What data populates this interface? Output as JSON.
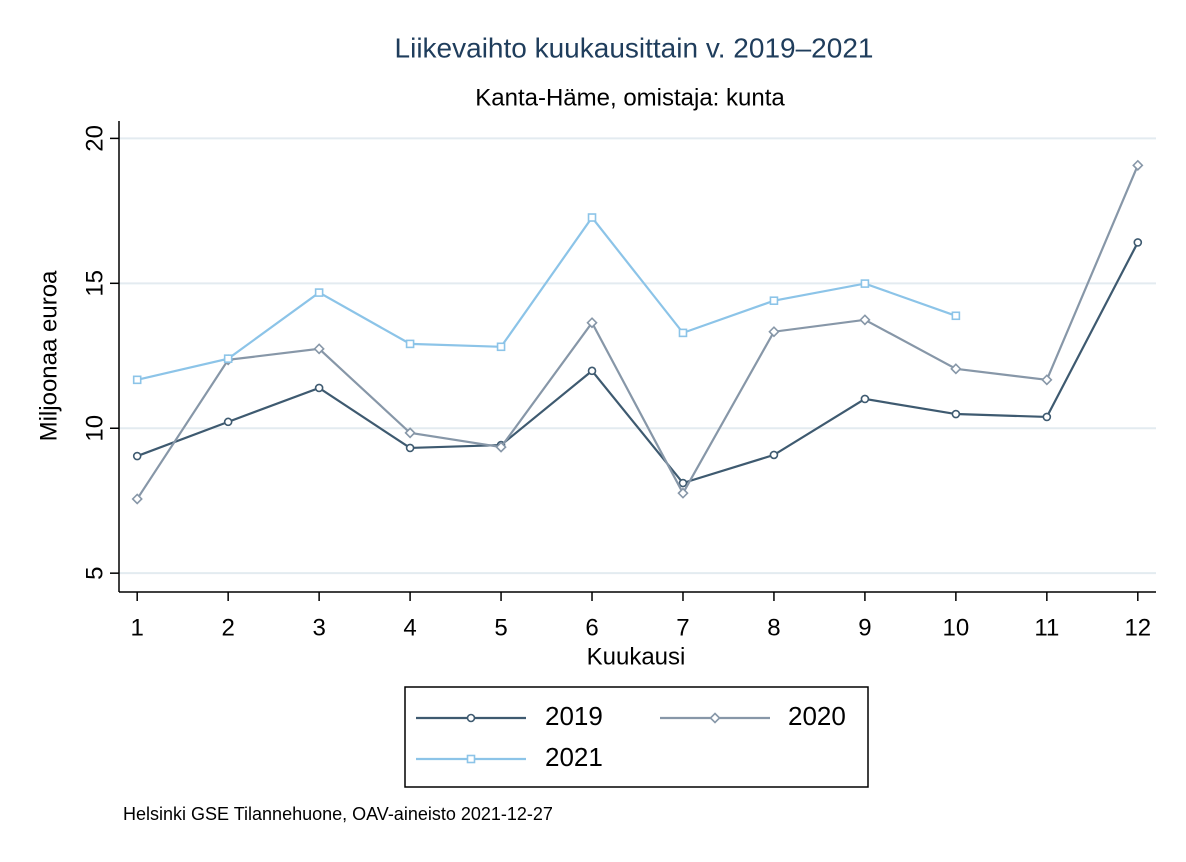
{
  "chart_data": {
    "type": "line",
    "title": "Liikevaihto kuukausittain v. 2019–2021",
    "subtitle": "Kanta-Häme, omistaja: kunta",
    "x_label": "Kuukausi",
    "y_label": "Miljoonaa euroa",
    "caption": "Helsinki GSE Tilannehuone, OAV-aineisto 2021-12-27",
    "x": [
      1,
      2,
      3,
      4,
      5,
      6,
      7,
      8,
      9,
      10,
      11,
      12
    ],
    "xlim": [
      0.8,
      12.2
    ],
    "xticks": [
      1,
      2,
      3,
      4,
      5,
      6,
      7,
      8,
      9,
      10,
      11,
      12
    ],
    "ylim": [
      4.35,
      20.6
    ],
    "yticks": [
      5,
      10,
      15,
      20
    ],
    "grid": true,
    "legend": "bottom",
    "series": [
      {
        "name": "2019",
        "color": "#3e5a70",
        "marker": "circle",
        "values": [
          9.04,
          10.22,
          11.39,
          9.32,
          9.42,
          11.98,
          8.11,
          9.08,
          11.01,
          10.49,
          10.39,
          16.41
        ]
      },
      {
        "name": "2020",
        "color": "#8797a8",
        "marker": "diamond",
        "values": [
          7.56,
          12.36,
          12.74,
          9.84,
          9.35,
          13.64,
          7.76,
          13.33,
          13.74,
          12.05,
          11.67,
          19.07
        ]
      },
      {
        "name": "2021",
        "color": "#8cc4e8",
        "marker": "square",
        "values": [
          11.67,
          12.4,
          14.68,
          12.91,
          12.81,
          17.27,
          13.29,
          14.4,
          14.99,
          13.88,
          null,
          null
        ]
      }
    ]
  }
}
